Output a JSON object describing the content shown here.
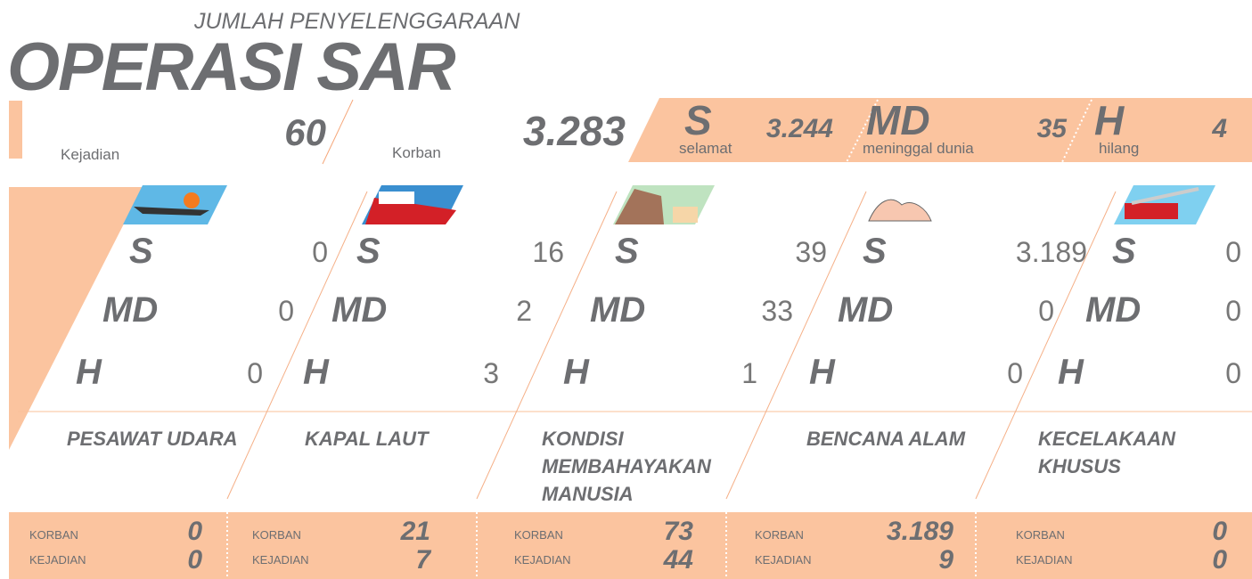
{
  "header": {
    "subtitle": "JUMLAH PENYELENGGARAAN",
    "title": "OPERASI SAR"
  },
  "summary": {
    "kejadian": {
      "label": "Kejadian",
      "value": "60"
    },
    "korban": {
      "label": "Korban",
      "value": "3.283"
    },
    "breakdown": [
      {
        "code": "S",
        "label": "selamat",
        "value": "3.244"
      },
      {
        "code": "MD",
        "label": "meninggal dunia",
        "value": "35"
      },
      {
        "code": "H",
        "label": "hilang",
        "value": "4"
      }
    ]
  },
  "categories": [
    {
      "name": "PESAWAT UDARA",
      "rows": [
        {
          "code": "S",
          "value": "0"
        },
        {
          "code": "MD",
          "value": "0"
        },
        {
          "code": "H",
          "value": "0"
        }
      ],
      "korban_label": "KORBAN",
      "korban": "0",
      "kejadian_label": "KEJADIAN",
      "kejadian": "0"
    },
    {
      "name": "KAPAL LAUT",
      "rows": [
        {
          "code": "S",
          "value": "16"
        },
        {
          "code": "MD",
          "value": "2"
        },
        {
          "code": "H",
          "value": "3"
        }
      ],
      "korban_label": "KORBAN",
      "korban": "21",
      "kejadian_label": "KEJADIAN",
      "kejadian": "7"
    },
    {
      "name": "KONDISI MEMBAHAYAKAN MANUSIA",
      "rows": [
        {
          "code": "S",
          "value": "39"
        },
        {
          "code": "MD",
          "value": "33"
        },
        {
          "code": "H",
          "value": "1"
        }
      ],
      "korban_label": "KORBAN",
      "korban": "73",
      "kejadian_label": "KEJADIAN",
      "kejadian": "44"
    },
    {
      "name": "BENCANA ALAM",
      "rows": [
        {
          "code": "S",
          "value": "3.189"
        },
        {
          "code": "MD",
          "value": "0"
        },
        {
          "code": "H",
          "value": "0"
        }
      ],
      "korban_label": "KORBAN",
      "korban": "3.189",
      "kejadian_label": "KEJADIAN",
      "kejadian": "9"
    },
    {
      "name": "KECELAKAAN KHUSUS",
      "rows": [
        {
          "code": "S",
          "value": "0"
        },
        {
          "code": "MD",
          "value": "0"
        },
        {
          "code": "H",
          "value": "0"
        }
      ],
      "korban_label": "KORBAN",
      "korban": "0",
      "kejadian_label": "KEJADIAN",
      "kejadian": "0"
    }
  ]
}
